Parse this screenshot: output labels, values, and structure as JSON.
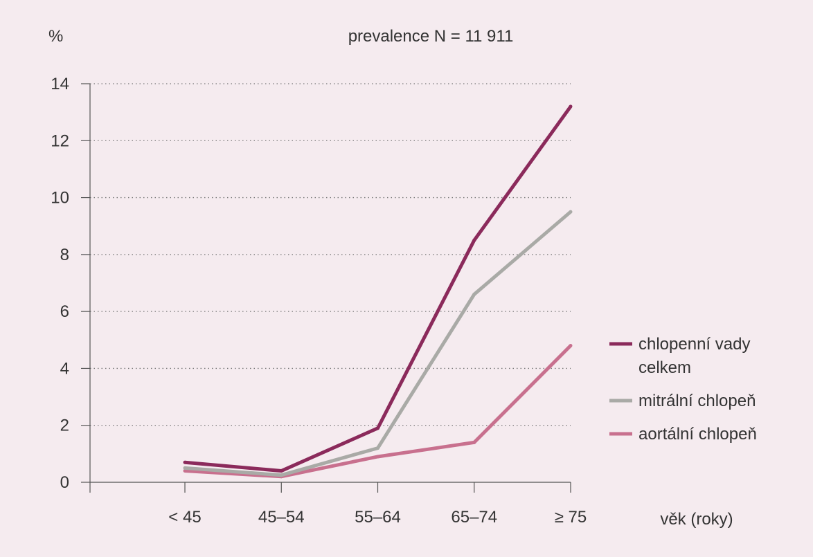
{
  "chart_data": {
    "type": "line",
    "title": "prevalence N = 11 911",
    "ylabel": "%",
    "xlabel": "věk (roky)",
    "categories": [
      "< 45",
      "45–54",
      "55–64",
      "65–74",
      "≥ 75"
    ],
    "ylim": [
      0,
      14
    ],
    "yticks": [
      0,
      2,
      4,
      6,
      8,
      10,
      12,
      14
    ],
    "grid": "horizontal dotted",
    "legend_position": "right",
    "series": [
      {
        "name": "chlopenní vady celkem",
        "name_lines": [
          "chlopenní vady",
          "celkem"
        ],
        "color": "#8b2a5b",
        "values": [
          0.7,
          0.4,
          1.9,
          8.5,
          13.2
        ]
      },
      {
        "name": "mitrální chlopeň",
        "name_lines": [
          "mitrální chlopeň"
        ],
        "color": "#a9aaa6",
        "values": [
          0.5,
          0.25,
          1.2,
          6.6,
          9.5
        ]
      },
      {
        "name": "aortální chlopeň",
        "name_lines": [
          "aortální chlopeň"
        ],
        "color": "#c8708e",
        "values": [
          0.4,
          0.2,
          0.9,
          1.4,
          4.8
        ]
      }
    ]
  }
}
